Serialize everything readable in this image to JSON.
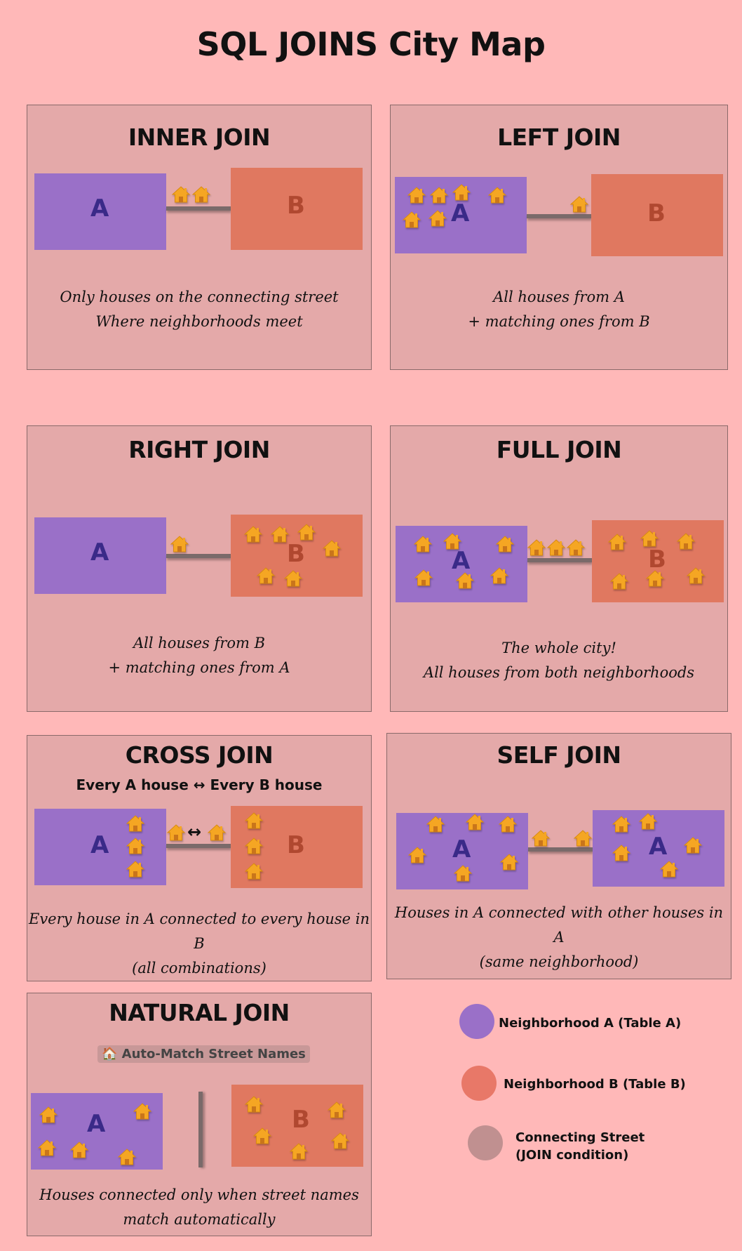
{
  "title": "SQL JOINS City Map",
  "colors": {
    "background": "#ffb8b8",
    "panel": "#e4a9a9",
    "neighborhood_a": "#9a70c8",
    "neighborhood_b": "#e07860",
    "street": "#7a6a6a",
    "house": "#f5a623"
  },
  "house_icon": "house-icon",
  "panels": {
    "inner": {
      "title": "INNER JOIN",
      "label_a": "A",
      "label_b": "B",
      "caption_line1": "Only houses on the connecting street",
      "caption_line2": "Where neighborhoods meet"
    },
    "left": {
      "title": "LEFT JOIN",
      "label_a": "A",
      "label_b": "B",
      "caption_line1": "All houses from A",
      "caption_line2": "+ matching ones from B"
    },
    "right": {
      "title": "RIGHT JOIN",
      "label_a": "A",
      "label_b": "B",
      "caption_line1": "All houses from B",
      "caption_line2": "+ matching ones from A"
    },
    "full": {
      "title": "FULL JOIN",
      "label_a": "A",
      "label_b": "B",
      "caption_line1": "The whole city!",
      "caption_line2": "All houses from both neighborhoods"
    },
    "cross": {
      "title": "CROSS JOIN",
      "subtitle": "Every A house ↔ Every B house",
      "label_a": "A",
      "label_b": "B",
      "arrow": "↔",
      "caption_line1": "Every house in A connected to every house in B",
      "caption_line2": "(all combinations)"
    },
    "self": {
      "title": "SELF JOIN",
      "label_a": "A",
      "label_a2": "A",
      "caption_line1": "Houses in A connected with other houses in A",
      "caption_line2": "(same neighborhood)"
    },
    "natural": {
      "title": "NATURAL JOIN",
      "badge": "🏠 Auto-Match Street Names",
      "label_a": "A",
      "label_b": "B",
      "caption_line1": "Houses connected only when street names",
      "caption_line2": "match automatically"
    }
  },
  "legend": {
    "a": "Neighborhood A (Table A)",
    "b": "Neighborhood B (Table B)",
    "street_line1": "Connecting Street",
    "street_line2": "(JOIN condition)"
  }
}
